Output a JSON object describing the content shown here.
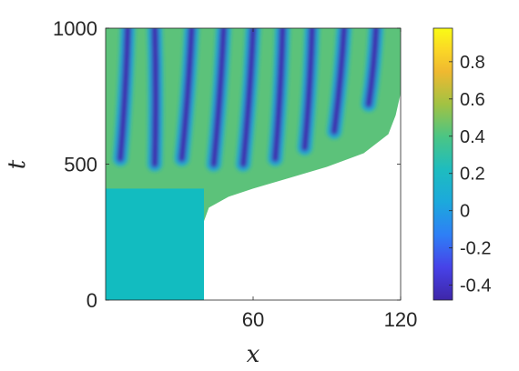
{
  "chart_data": {
    "type": "heatmap",
    "title": "",
    "xlabel": "x",
    "ylabel": "t",
    "xlim": [
      0,
      120
    ],
    "ylim": [
      0,
      1000
    ],
    "x_ticks": [
      {
        "value": 60,
        "label": "60"
      },
      {
        "value": 120,
        "label": "120"
      }
    ],
    "y_ticks": [
      {
        "value": 0,
        "label": "0"
      },
      {
        "value": 500,
        "label": "500"
      },
      {
        "value": 1000,
        "label": "1000"
      }
    ],
    "colorbar": {
      "colormap": "parula",
      "range": [
        -0.48,
        0.98
      ],
      "ticks": [
        {
          "value": -0.4,
          "label": "-0.4"
        },
        {
          "value": -0.2,
          "label": "-0.2"
        },
        {
          "value": 0,
          "label": "0"
        },
        {
          "value": 0.2,
          "label": "0.2"
        },
        {
          "value": 0.4,
          "label": "0.4"
        },
        {
          "value": 0.6,
          "label": "0.6"
        },
        {
          "value": 0.8,
          "label": "0.8"
        }
      ]
    },
    "regions": {
      "uniform_state": {
        "value": 0.23,
        "x_range": [
          0,
          40
        ],
        "t_range": [
          0,
          410
        ]
      },
      "front": [
        {
          "x": 40,
          "t": 0
        },
        {
          "x": 40,
          "t": 290
        },
        {
          "x": 42,
          "t": 340
        },
        {
          "x": 50,
          "t": 380
        },
        {
          "x": 60,
          "t": 410
        },
        {
          "x": 75,
          "t": 450
        },
        {
          "x": 90,
          "t": 490
        },
        {
          "x": 105,
          "t": 540
        },
        {
          "x": 115,
          "t": 610
        },
        {
          "x": 118,
          "t": 680
        },
        {
          "x": 120,
          "t": 760
        }
      ]
    },
    "stripes": [
      {
        "x_start": 6,
        "t_start": 520,
        "x_end": 9,
        "t_end": 1000
      },
      {
        "x_start": 20,
        "t_start": 500,
        "x_end": 20,
        "t_end": 1000
      },
      {
        "x_start": 31,
        "t_start": 520,
        "x_end": 35,
        "t_end": 1000
      },
      {
        "x_start": 44,
        "t_start": 500,
        "x_end": 48,
        "t_end": 1000
      },
      {
        "x_start": 56,
        "t_start": 500,
        "x_end": 60,
        "t_end": 1000
      },
      {
        "x_start": 69,
        "t_start": 520,
        "x_end": 72,
        "t_end": 1000
      },
      {
        "x_start": 81,
        "t_start": 560,
        "x_end": 84,
        "t_end": 1000
      },
      {
        "x_start": 93,
        "t_start": 620,
        "x_end": 97,
        "t_end": 1000
      },
      {
        "x_start": 107,
        "t_start": 720,
        "x_end": 110,
        "t_end": 1000
      }
    ]
  }
}
